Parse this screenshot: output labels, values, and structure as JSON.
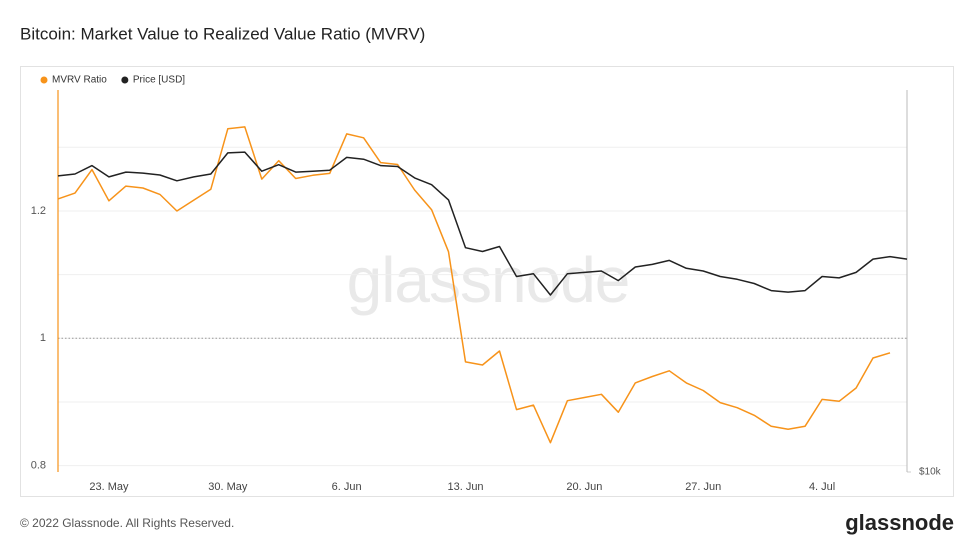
{
  "chart_data": {
    "type": "line",
    "title": "Bitcoin: Market Value to Realized Value Ratio (MVRV)",
    "watermark": "glassnode",
    "footer": "© 2022 Glassnode. All Rights Reserved.",
    "logo": "glassnode",
    "categories": [
      null,
      null,
      null,
      "23. May",
      null,
      null,
      null,
      null,
      null,
      null,
      "30. May",
      null,
      null,
      null,
      null,
      null,
      null,
      "6. Jun",
      null,
      null,
      null,
      null,
      null,
      null,
      "13. Jun",
      null,
      null,
      null,
      null,
      null,
      null,
      "20. Jun",
      null,
      null,
      null,
      null,
      null,
      null,
      "27. Jun",
      null,
      null,
      null,
      null,
      null,
      null,
      "4. Jul",
      null,
      null,
      null,
      null,
      null
    ],
    "series": [
      {
        "name": "MVRV Ratio",
        "color": "#f7931a",
        "axis": "y",
        "values": [
          1.219,
          1.228,
          1.265,
          1.216,
          1.239,
          1.236,
          1.226,
          1.2,
          1.217,
          1.234,
          1.329,
          1.332,
          1.25,
          1.279,
          1.251,
          1.256,
          1.259,
          1.321,
          1.315,
          1.276,
          1.273,
          1.233,
          1.202,
          1.136,
          0.963,
          0.958,
          0.98,
          0.888,
          0.895,
          0.836,
          0.902,
          0.907,
          0.912,
          0.884,
          0.93,
          0.94,
          0.949,
          0.93,
          0.918,
          0.899,
          0.891,
          0.879,
          0.862,
          0.857,
          0.862,
          0.904,
          0.901,
          0.922,
          0.969,
          0.977,
          null
        ]
      },
      {
        "name": "Price [USD]",
        "color": "#222222",
        "axis": "y2",
        "values": [
          29000,
          29200,
          30100,
          28900,
          29400,
          29300,
          29100,
          28500,
          28900,
          29200,
          31500,
          31600,
          29500,
          30200,
          29400,
          29500,
          29600,
          31000,
          30800,
          30100,
          30000,
          28800,
          28100,
          26600,
          22400,
          22100,
          22500,
          20200,
          20400,
          18900,
          20400,
          20500,
          20600,
          19900,
          20900,
          21100,
          21400,
          20800,
          20600,
          20200,
          20000,
          19700,
          19200,
          19100,
          19200,
          20200,
          20100,
          20500,
          21500,
          21700,
          21500
        ]
      }
    ],
    "ylim": [
      0.79,
      1.39
    ],
    "yticks": [
      0.8,
      1,
      1.2
    ],
    "minor_gridlines": [
      0.9,
      1.1,
      1.3
    ],
    "reference_line": 1,
    "y2lim": [
      10000,
      39500
    ],
    "y2_log": true,
    "y2ticks": [
      {
        "value": 10000,
        "label": "$10k"
      }
    ],
    "grid": true,
    "legend": "top-left"
  }
}
